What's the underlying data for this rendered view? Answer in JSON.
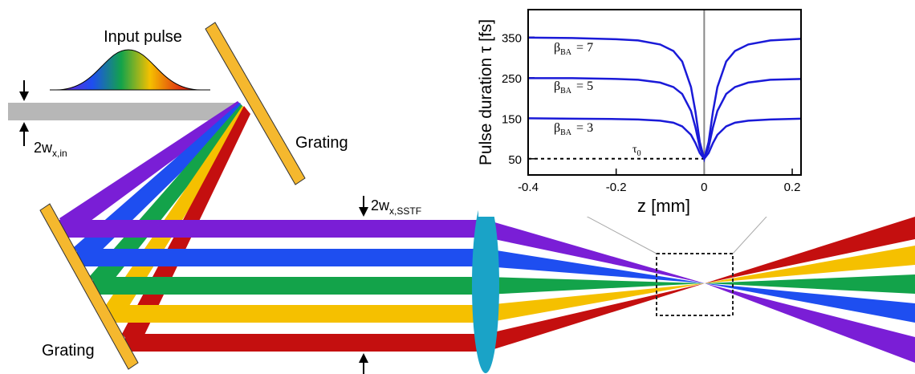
{
  "labels": {
    "input_pulse": "Input pulse",
    "grating_top": "Grating",
    "grating_bottom": "Grating",
    "input_width": {
      "symbol": "2w",
      "sub": "x,in"
    },
    "output_width": {
      "symbol": "2w",
      "sub": "x,SSTF"
    }
  },
  "chart_data": {
    "type": "line",
    "x_label": "z [mm]",
    "y_label": "Pulse duration τ [fs]",
    "x": [
      -0.4,
      -0.3,
      -0.2,
      -0.15,
      -0.1,
      -0.07,
      -0.05,
      -0.03,
      -0.02,
      -0.01,
      0,
      0.01,
      0.02,
      0.03,
      0.05,
      0.07,
      0.1,
      0.15,
      0.22
    ],
    "series": [
      {
        "color": "#1a1ad8",
        "values": [
          349,
          348,
          345,
          342,
          332,
          316,
          290,
          227,
          167,
          91,
          50,
          91,
          167,
          227,
          290,
          316,
          332,
          342,
          346
        ]
      },
      {
        "color": "#1a1ad8",
        "values": [
          249,
          249,
          247,
          245,
          238,
          227,
          210,
          168,
          128,
          78,
          50,
          78,
          128,
          168,
          210,
          227,
          238,
          245,
          247
        ]
      },
      {
        "color": "#1a1ad8",
        "values": [
          150,
          149,
          148,
          147,
          144,
          139,
          130,
          109,
          89,
          64,
          50,
          64,
          89,
          109,
          130,
          139,
          144,
          147,
          149
        ]
      }
    ],
    "annotations": [
      {
        "symbol": "β",
        "sub": "BA",
        "text": "= 7"
      },
      {
        "symbol": "β",
        "sub": "BA",
        "text": "= 5"
      },
      {
        "symbol": "β",
        "sub": "BA",
        "text": "= 3"
      },
      {
        "symbol": "τ",
        "sub": "0"
      }
    ],
    "reference_line": 50,
    "zero_line": 0,
    "xlim": [
      -0.4,
      0.22
    ],
    "ylim": [
      10,
      418
    ],
    "xticks": [
      -0.4,
      -0.2,
      0,
      0.2
    ],
    "yticks": [
      50,
      150,
      250,
      350
    ]
  }
}
